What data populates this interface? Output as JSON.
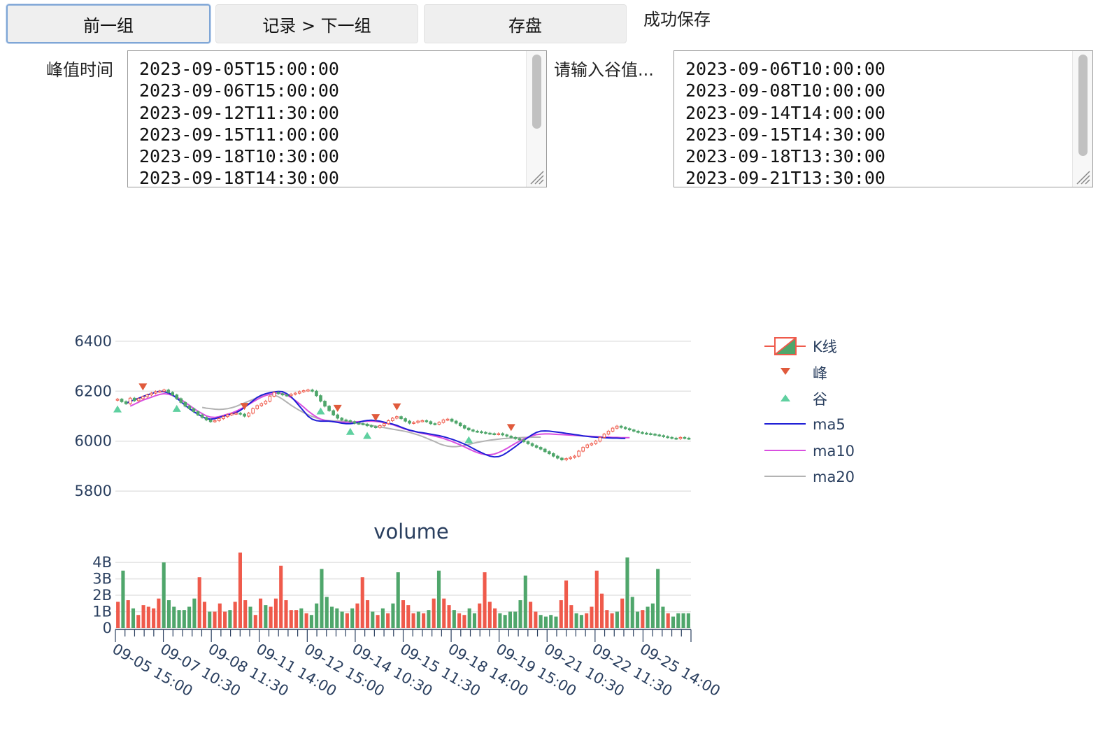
{
  "toolbar": {
    "prev_label": "前一组",
    "record_next_label": "记录 > 下一组",
    "save_label": "存盘",
    "status_text": "成功保存"
  },
  "peak_field": {
    "label": "峰值时间",
    "lines": [
      "2023-09-05T15:00:00",
      "2023-09-06T15:00:00",
      "2023-09-12T11:30:00",
      "2023-09-15T11:00:00",
      "2023-09-18T10:30:00",
      "2023-09-18T14:30:00"
    ]
  },
  "valley_field": {
    "label": "请输入谷值...",
    "lines": [
      "2023-09-06T10:00:00",
      "2023-09-08T10:00:00",
      "2023-09-14T14:00:00",
      "2023-09-15T14:30:00",
      "2023-09-18T13:30:00",
      "2023-09-21T13:30:00"
    ]
  },
  "chart_data": [
    {
      "type": "candlestick",
      "ylim": [
        5750,
        6450
      ],
      "yticks": [
        5800,
        6000,
        6200,
        6400
      ],
      "grid": true,
      "legend_position": "right",
      "legend": [
        "K线",
        "峰",
        "谷",
        "ma5",
        "ma10",
        "ma20"
      ],
      "colors": {
        "up": "#ef5a4b",
        "down": "#4fa66b",
        "ma5": "#1f1fd6",
        "ma10": "#d94fe0",
        "ma20": "#b3b3b3",
        "peak": "#e05a3c",
        "valley": "#5fd0a0"
      },
      "close": [
        6168,
        6158,
        6150,
        6172,
        6162,
        6170,
        6178,
        6185,
        6192,
        6198,
        6200,
        6205,
        6195,
        6185,
        6170,
        6155,
        6140,
        6130,
        6118,
        6105,
        6095,
        6085,
        6078,
        6082,
        6090,
        6098,
        6105,
        6110,
        6112,
        6108,
        6100,
        6112,
        6130,
        6142,
        6150,
        6160,
        6180,
        6195,
        6190,
        6185,
        6182,
        6188,
        6192,
        6198,
        6202,
        6205,
        6200,
        6182,
        6160,
        6140,
        6122,
        6105,
        6092,
        6085,
        6082,
        6078,
        6072,
        6070,
        6068,
        6062,
        6058,
        6055,
        6062,
        6070,
        6082,
        6092,
        6098,
        6090,
        6080,
        6072,
        6075,
        6080,
        6082,
        6078,
        6070,
        6068,
        6075,
        6085,
        6088,
        6080,
        6072,
        6062,
        6052,
        6045,
        6040,
        6038,
        6035,
        6032,
        6030,
        6028,
        6030,
        6025,
        6020,
        6015,
        6010,
        6005,
        5998,
        5990,
        5982,
        5975,
        5968,
        5958,
        5950,
        5940,
        5932,
        5925,
        5930,
        5935,
        5940,
        5960,
        5975,
        5985,
        5990,
        6000,
        6015,
        6028,
        6040,
        6052,
        6060,
        6055,
        6050,
        6045,
        6040,
        6035,
        6032,
        6030,
        6028,
        6025,
        6022,
        6018,
        6015,
        6012,
        6010,
        6015,
        6012,
        6010
      ],
      "ma5": [
        6150,
        6160,
        6165,
        6172,
        6178,
        6185,
        6190,
        6196,
        6200,
        6198,
        6193,
        6185,
        6172,
        6158,
        6143,
        6130,
        6118,
        6108,
        6098,
        6090,
        6088,
        6090,
        6095,
        6100,
        6104,
        6108,
        6114,
        6123,
        6135,
        6148,
        6162,
        6175,
        6184,
        6190,
        6194,
        6197,
        6199,
        6198,
        6190,
        6178,
        6160,
        6140,
        6120,
        6100,
        6088,
        6082,
        6080,
        6080,
        6080,
        6078,
        6075,
        6072,
        6070,
        6070,
        6072,
        6076,
        6080,
        6083,
        6084,
        6082,
        6080,
        6076,
        6072,
        6068,
        6063,
        6056,
        6050,
        6044,
        6040,
        6036,
        6034,
        6031,
        6028,
        6025,
        6022,
        6018,
        6013,
        6008,
        6002,
        5995,
        5988,
        5980,
        5971,
        5962,
        5954,
        5946,
        5940,
        5937,
        5938,
        5944,
        5954,
        5966,
        5978,
        5991,
        6003,
        6015,
        6026,
        6035,
        6040,
        6041,
        6040,
        6038,
        6036,
        6034,
        6031,
        6029,
        6026,
        6024,
        6021,
        6019,
        6017,
        6016,
        6015,
        6014,
        6013,
        6012,
        6012,
        6011,
        6011
      ],
      "ma10": [
        6140,
        6148,
        6156,
        6164,
        6170,
        6176,
        6182,
        6187,
        6190,
        6188,
        6183,
        6176,
        6167,
        6155,
        6143,
        6131,
        6120,
        6110,
        6101,
        6096,
        6095,
        6098,
        6103,
        6108,
        6113,
        6120,
        6128,
        6137,
        6147,
        6157,
        6167,
        6176,
        6183,
        6188,
        6191,
        6192,
        6190,
        6184,
        6175,
        6163,
        6150,
        6136,
        6121,
        6108,
        6097,
        6088,
        6083,
        6080,
        6078,
        6077,
        6076,
        6076,
        6076,
        6077,
        6078,
        6079,
        6080,
        6080,
        6079,
        6077,
        6074,
        6070,
        6066,
        6060,
        6054,
        6048,
        6043,
        6039,
        6035,
        6031,
        6028,
        6024,
        6020,
        6016,
        6011,
        6005,
        5999,
        5992,
        5985,
        5977,
        5969,
        5961,
        5954,
        5949,
        5946,
        5946,
        5948,
        5954,
        5962,
        5971,
        5981,
        5991,
        6000,
        6009,
        6016,
        6022,
        6026,
        6028,
        6029,
        6029,
        6028,
        6027,
        6026,
        6025,
        6024,
        6023,
        6022,
        6021,
        6020,
        6019,
        6018,
        6017,
        6016,
        6016,
        6015,
        6015,
        6014,
        6014,
        6014
      ],
      "ma20": [
        6135,
        6132,
        6130,
        6128,
        6127,
        6128,
        6130,
        6134,
        6139,
        6146,
        6153,
        6160,
        6167,
        6174,
        6180,
        6184,
        6186,
        6184,
        6178,
        6168,
        6156,
        6144,
        6133,
        6123,
        6114,
        6106,
        6099,
        6093,
        6088,
        6084,
        6082,
        6081,
        6081,
        6080,
        6079,
        6077,
        6075,
        6072,
        6069,
        6066,
        6063,
        6060,
        6057,
        6054,
        6051,
        6048,
        6045,
        6042,
        6039,
        6035,
        6030,
        6025,
        6019,
        6012,
        6005,
        5998,
        5990,
        5984,
        5980,
        5978,
        5978,
        5980,
        5983,
        5987,
        5991,
        5995,
        5998,
        6001,
        6004,
        6006,
        6008,
        6010,
        6011,
        6012,
        6013,
        6014,
        6015,
        6015,
        6016,
        6016,
        6016
      ]
    },
    {
      "type": "bar",
      "title": "volume",
      "ylim": [
        0,
        4.6
      ],
      "yticks": [
        "0",
        "1B",
        "2B",
        "3B",
        "4B"
      ],
      "ytick_values": [
        0,
        1,
        2,
        3,
        4
      ],
      "grid": true,
      "xtick_labels": [
        "09-05 15:00",
        "09-07 10:30",
        "09-08 11:30",
        "09-11 14:00",
        "09-12 15:00",
        "09-14 10:30",
        "09-15 11:30",
        "09-18 14:00",
        "09-19 15:00",
        "09-21 10:30",
        "09-22 11:30",
        "09-25 14:00"
      ],
      "values": [
        1.6,
        3.5,
        1.7,
        1.2,
        0.8,
        1.4,
        1.3,
        1.2,
        1.8,
        4.0,
        1.7,
        1.3,
        1.1,
        1.1,
        1.3,
        1.8,
        3.1,
        1.6,
        1.0,
        1.0,
        1.5,
        1.0,
        1.1,
        1.6,
        4.6,
        1.7,
        1.3,
        0.8,
        1.8,
        1.4,
        1.3,
        1.8,
        3.8,
        1.7,
        1.1,
        1.1,
        1.2,
        0.9,
        0.8,
        1.5,
        3.6,
        1.9,
        1.3,
        1.2,
        1.0,
        0.9,
        1.2,
        1.5,
        3.1,
        1.7,
        1.0,
        0.8,
        1.2,
        0.9,
        1.5,
        3.4,
        1.7,
        1.4,
        0.9,
        1.0,
        0.9,
        1.1,
        1.8,
        3.5,
        1.8,
        1.4,
        1.1,
        0.9,
        0.8,
        1.2,
        0.9,
        1.5,
        3.4,
        1.6,
        1.2,
        0.9,
        0.8,
        1.0,
        1.0,
        1.7,
        3.2,
        1.6,
        1.0,
        0.8,
        0.7,
        0.8,
        0.7,
        1.7,
        2.9,
        1.4,
        0.9,
        0.8,
        0.9,
        1.3,
        3.5,
        2.1,
        1.1,
        0.9,
        1.0,
        1.8,
        4.3,
        1.9,
        1.0,
        1.1,
        1.3,
        1.5,
        3.6,
        1.3,
        0.9,
        0.7,
        0.9,
        0.9,
        0.9
      ],
      "up": [
        true,
        false,
        true,
        false,
        true,
        true,
        true,
        true,
        true,
        false,
        false,
        false,
        false,
        false,
        false,
        false,
        true,
        true,
        false,
        true,
        true,
        true,
        false,
        true,
        true,
        true,
        false,
        true,
        true,
        false,
        true,
        true,
        true,
        true,
        true,
        true,
        false,
        true,
        false,
        false,
        false,
        false,
        false,
        false,
        false,
        true,
        false,
        true,
        true,
        true,
        false,
        true,
        false,
        true,
        false,
        false,
        true,
        true,
        true,
        false,
        true,
        false,
        true,
        false,
        true,
        true,
        false,
        true,
        true,
        false,
        false,
        true,
        true,
        true,
        true,
        false,
        false,
        false,
        false,
        false,
        false,
        true,
        true,
        false,
        false,
        false,
        false,
        true,
        true,
        true,
        false,
        false,
        true,
        true,
        true,
        true,
        true,
        true,
        false,
        true,
        false,
        false,
        false,
        true,
        false,
        false,
        false,
        false,
        true,
        false,
        false,
        false,
        false
      ],
      "xlabel": "",
      "ylabel": ""
    }
  ],
  "peaks_idx": [
    6,
    30,
    52,
    61,
    66,
    93
  ],
  "valleys_idx": [
    0,
    14,
    48,
    55,
    59,
    83
  ]
}
